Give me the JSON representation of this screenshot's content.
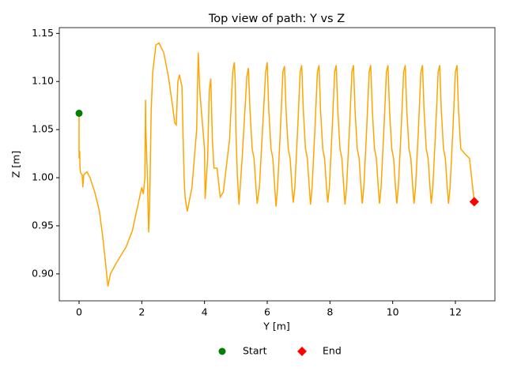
{
  "chart_data": {
    "type": "line",
    "title": "Top view of path: Y vs Z",
    "xlabel": "Y [m]",
    "ylabel": "Z [m]",
    "xlim": [
      -0.63,
      13.26
    ],
    "ylim": [
      0.872,
      1.156
    ],
    "xticks": [
      0,
      2,
      4,
      6,
      8,
      10,
      12
    ],
    "yticks": [
      {
        "value": 0.9,
        "label": "0.90"
      },
      {
        "value": 0.95,
        "label": "0.95"
      },
      {
        "value": 1.0,
        "label": "1.00"
      },
      {
        "value": 1.05,
        "label": "1.05"
      },
      {
        "value": 1.1,
        "label": "1.10"
      },
      {
        "value": 1.15,
        "label": "1.15"
      }
    ],
    "legend": "below",
    "series": [
      {
        "color": "#ffa500",
        "x": [
          0,
          0,
          0.02,
          0.03,
          0.05,
          0.1,
          0.12,
          0.15,
          0.25,
          0.35,
          0.5,
          0.65,
          0.75,
          0.85,
          0.92,
          1.0,
          1.2,
          1.5,
          1.7,
          1.9,
          2.0,
          2.05,
          2.1,
          2.12,
          2.13,
          2.18,
          2.22,
          2.25,
          2.3,
          2.35,
          2.45,
          2.55,
          2.7,
          2.85,
          3.0,
          3.05,
          3.1,
          3.15,
          3.2,
          3.28,
          3.32,
          3.35,
          3.38,
          3.45,
          3.6,
          3.75,
          3.8,
          3.85,
          3.95,
          4.0,
          4.02,
          4.1,
          4.15,
          4.2,
          4.25,
          4.3,
          4.4,
          4.5,
          4.6,
          4.8,
          4.9,
          4.95,
          4.98,
          5.0,
          5.05,
          5.1,
          5.2,
          5.35,
          5.4,
          5.45,
          5.52,
          5.58,
          5.64,
          5.68,
          5.75,
          5.85,
          5.95,
          6.0,
          6.05,
          6.12,
          6.18,
          6.24,
          6.28,
          6.33,
          6.42,
          6.5,
          6.55,
          6.6,
          6.67,
          6.73,
          6.79,
          6.83,
          6.88,
          6.97,
          7.05,
          7.1,
          7.15,
          7.22,
          7.28,
          7.34,
          7.38,
          7.43,
          7.52,
          7.6,
          7.65,
          7.7,
          7.77,
          7.83,
          7.89,
          7.93,
          7.98,
          8.07,
          8.15,
          8.2,
          8.25,
          8.32,
          8.38,
          8.44,
          8.48,
          8.53,
          8.62,
          8.7,
          8.75,
          8.8,
          8.87,
          8.93,
          8.99,
          9.03,
          9.08,
          9.17,
          9.25,
          9.3,
          9.35,
          9.42,
          9.48,
          9.54,
          9.58,
          9.63,
          9.72,
          9.8,
          9.85,
          9.9,
          9.97,
          10.03,
          10.09,
          10.13,
          10.18,
          10.27,
          10.35,
          10.4,
          10.45,
          10.52,
          10.58,
          10.64,
          10.68,
          10.73,
          10.82,
          10.9,
          10.95,
          11.0,
          11.07,
          11.13,
          11.19,
          11.23,
          11.28,
          11.37,
          11.45,
          11.5,
          11.55,
          11.62,
          11.68,
          11.74,
          11.78,
          11.83,
          11.92,
          12.0,
          12.05,
          12.1,
          12.17,
          12.3,
          12.45,
          12.55,
          12.6
        ],
        "values": [
          1.067,
          1.02,
          1.028,
          1.01,
          1.005,
          1.003,
          0.99,
          1.003,
          1.006,
          1.0,
          0.985,
          0.965,
          0.94,
          0.91,
          0.887,
          0.9,
          0.912,
          0.928,
          0.945,
          0.975,
          0.99,
          0.983,
          1.0,
          1.081,
          1.05,
          1.0,
          0.943,
          0.97,
          1.07,
          1.11,
          1.138,
          1.14,
          1.13,
          1.105,
          1.07,
          1.057,
          1.055,
          1.1,
          1.107,
          1.095,
          1.04,
          1.0,
          0.98,
          0.965,
          0.99,
          1.05,
          1.13,
          1.09,
          1.05,
          1.03,
          0.978,
          1.02,
          1.09,
          1.103,
          1.04,
          1.01,
          1.01,
          0.98,
          0.985,
          1.04,
          1.11,
          1.12,
          1.1,
          1.05,
          1.0,
          0.972,
          1.02,
          1.105,
          1.114,
          1.07,
          1.03,
          1.02,
          0.99,
          0.973,
          0.99,
          1.05,
          1.11,
          1.12,
          1.07,
          1.03,
          1.02,
          0.99,
          0.97,
          0.99,
          1.05,
          1.11,
          1.116,
          1.07,
          1.03,
          1.02,
          0.99,
          0.974,
          0.99,
          1.05,
          1.11,
          1.117,
          1.07,
          1.03,
          1.02,
          0.99,
          0.972,
          0.99,
          1.05,
          1.11,
          1.117,
          1.07,
          1.03,
          1.02,
          0.99,
          0.974,
          0.99,
          1.05,
          1.11,
          1.117,
          1.07,
          1.03,
          1.02,
          0.99,
          0.972,
          0.99,
          1.05,
          1.11,
          1.117,
          1.07,
          1.03,
          1.02,
          0.99,
          0.973,
          0.99,
          1.05,
          1.11,
          1.117,
          1.07,
          1.03,
          1.02,
          0.99,
          0.973,
          0.99,
          1.05,
          1.11,
          1.117,
          1.07,
          1.03,
          1.02,
          0.99,
          0.973,
          0.99,
          1.05,
          1.11,
          1.117,
          1.07,
          1.03,
          1.02,
          0.99,
          0.973,
          0.99,
          1.05,
          1.11,
          1.117,
          1.07,
          1.03,
          1.02,
          0.99,
          0.973,
          0.99,
          1.05,
          1.11,
          1.117,
          1.07,
          1.03,
          1.02,
          0.99,
          0.973,
          0.99,
          1.05,
          1.11,
          1.117,
          1.07,
          1.03,
          1.025,
          1.02,
          0.99,
          0.975
        ]
      },
      {
        "name": "Start",
        "color": "#008000",
        "marker": "circle",
        "x": [
          0
        ],
        "values": [
          1.067
        ]
      },
      {
        "name": "End",
        "color": "#ff0000",
        "marker": "diamond",
        "x": [
          12.6
        ],
        "values": [
          0.975
        ]
      }
    ]
  }
}
